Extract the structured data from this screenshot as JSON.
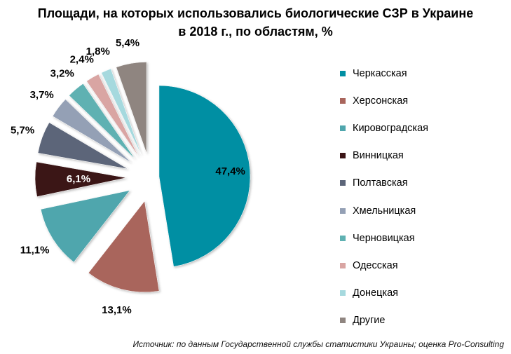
{
  "title_line1": "Площади, на которых использовались биологические СЗР в Украине",
  "title_line2": "в 2018 г., по областям, %",
  "source": "Источник: по данным Государственной службы статистики Украины; оценка Pro-Consulting",
  "chart_data": {
    "type": "pie",
    "title": "Площади, на которых использовались биологические СЗР в Украине в 2018 г., по областям, %",
    "legend_position": "right",
    "exploded": true,
    "slices": [
      {
        "label": "Черкасская",
        "value": 47.4,
        "display": "47,4%",
        "color": "#008fa3"
      },
      {
        "label": "Херсонская",
        "value": 13.1,
        "display": "13,1%",
        "color": "#a9655c"
      },
      {
        "label": "Кировоградская",
        "value": 11.1,
        "display": "11,1%",
        "color": "#4fa6ad"
      },
      {
        "label": "Винницкая",
        "value": 6.1,
        "display": "6,1%",
        "color": "#3b1416"
      },
      {
        "label": "Полтавская",
        "value": 5.7,
        "display": "5,7%",
        "color": "#5c6579"
      },
      {
        "label": "Хмельницкая",
        "value": 3.7,
        "display": "3,7%",
        "color": "#94a0b5"
      },
      {
        "label": "Черновицкая",
        "value": 3.2,
        "display": "3,2%",
        "color": "#5fb1b2"
      },
      {
        "label": "Одесская",
        "value": 2.4,
        "display": "2,4%",
        "color": "#d9a5a3"
      },
      {
        "label": "Донецкая",
        "value": 1.8,
        "display": "1,8%",
        "color": "#a6d9de"
      },
      {
        "label": "Другие",
        "value": 5.4,
        "display": "5,4%",
        "color": "#8f8580"
      }
    ]
  }
}
